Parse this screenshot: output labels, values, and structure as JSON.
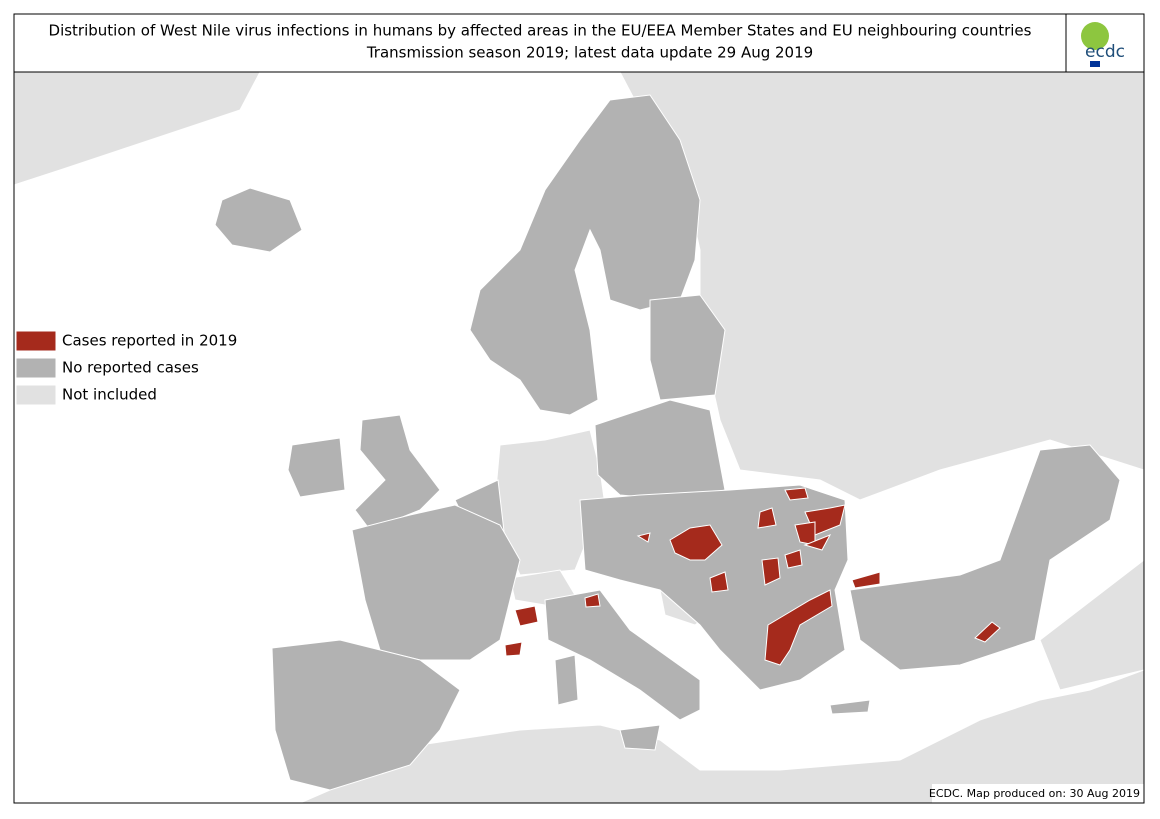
{
  "header": {
    "title_line1": "Distribution of West Nile virus infections in humans by affected areas in the EU/EEA Member States and EU neighbouring countries",
    "title_line2": "Transmission season 2019; latest data update 29 Aug 2019",
    "logo": "ecdc"
  },
  "legend": {
    "items": [
      {
        "label": "Cases reported in 2019",
        "color": "#a52a1c"
      },
      {
        "label": "No reported cases",
        "color": "#b2b2b2"
      },
      {
        "label": "Not included",
        "color": "#e1e1e1"
      }
    ]
  },
  "footer": "ECDC. Map produced on: 30 Aug 2019"
}
